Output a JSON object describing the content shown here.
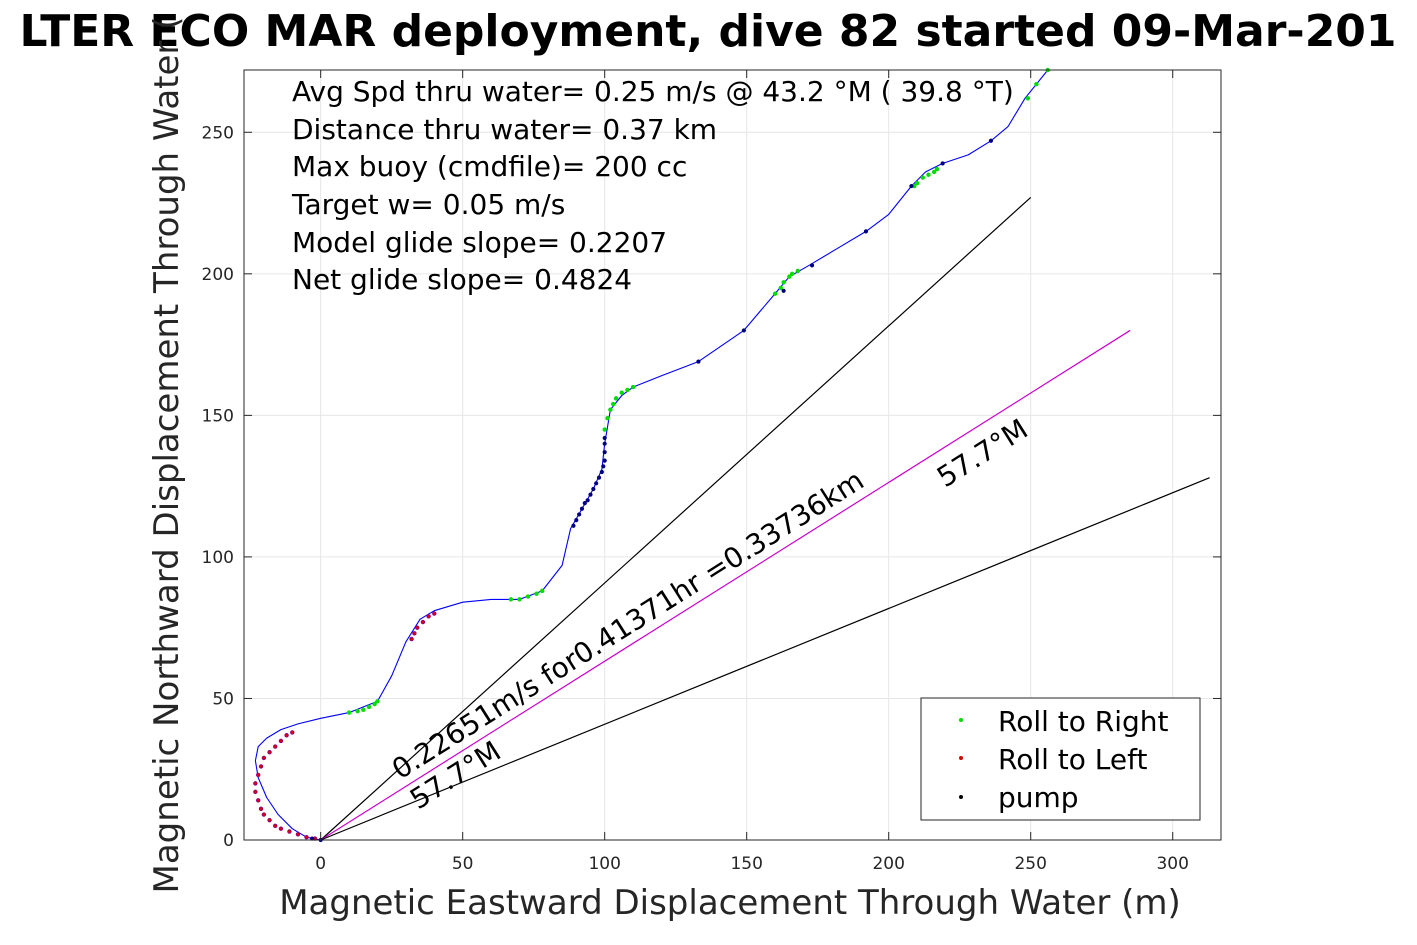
{
  "chart_data": {
    "type": "line",
    "title": "LTER ECO MAR deployment, dive 82 started 09-Mar-201",
    "xlabel": "Magnetic Eastward Displacement Through Water (m)",
    "ylabel": "Magnetic Northward Displacement Through Water (",
    "xlim": [
      -27,
      317
    ],
    "ylim": [
      0,
      272
    ],
    "xticks": [
      0,
      50,
      100,
      150,
      200,
      250,
      300
    ],
    "yticks": [
      0,
      50,
      100,
      150,
      200,
      250
    ],
    "grid": true,
    "legend_position": "bottom-right",
    "stats_text": [
      "Avg Spd thru water=  0.25 m/s @  43.2 °M ( 39.8 °T)",
      "Distance thru water=  0.37 km",
      "Max buoy (cmdfile)= 200 cc",
      "Target w= 0.05 m/s",
      "Model glide slope= 0.2207",
      "Net glide slope= 0.4824"
    ],
    "line_annotations": [
      {
        "text": "0.22651m/s for0.41371hr =0.33736km",
        "x": 28,
        "y": 20
      },
      {
        "text": "57.7°M",
        "x": 33,
        "y": 10
      },
      {
        "text": "57.7°M",
        "x": 220,
        "y": 124
      }
    ],
    "reference_lines": [
      {
        "name": "left-bound",
        "color": "#000000",
        "x": [
          0,
          250
        ],
        "y": [
          0,
          227
        ]
      },
      {
        "name": "heading",
        "color": "#cc00cc",
        "x": [
          0,
          285
        ],
        "y": [
          0,
          180
        ]
      },
      {
        "name": "right-bound",
        "color": "#000000",
        "x": [
          0,
          313
        ],
        "y": [
          0,
          128
        ]
      }
    ],
    "track": {
      "color": "#0000ff",
      "x": [
        0,
        -5,
        -10,
        -15,
        -19,
        -22,
        -23,
        -22,
        -19,
        -14,
        -8,
        0,
        10,
        20,
        25,
        30,
        35,
        40,
        50,
        60,
        70,
        78,
        85,
        88,
        92,
        96,
        99,
        100,
        102,
        106,
        110,
        120,
        133,
        149,
        160,
        165,
        172,
        182,
        192,
        200,
        208,
        213,
        219,
        228,
        236,
        242,
        248,
        256
      ],
      "y": [
        0,
        1,
        4,
        9,
        15,
        22,
        28,
        33,
        36,
        39,
        41,
        43,
        45,
        49,
        58,
        70,
        78,
        81,
        84,
        85,
        85,
        88,
        97,
        110,
        117,
        124,
        131,
        140,
        152,
        157,
        160,
        164,
        169,
        180,
        193,
        199,
        203,
        209,
        215,
        221,
        231,
        236,
        239,
        242,
        247,
        252,
        262,
        272
      ]
    },
    "markers": {
      "roll_right": {
        "color": "#00dd00",
        "x": [
          10,
          13,
          15,
          17,
          19,
          20,
          67,
          70,
          73,
          76,
          78,
          100,
          101,
          102,
          103,
          104,
          106,
          108,
          110,
          160,
          162,
          163,
          165,
          166,
          168,
          209,
          210,
          212,
          214,
          216,
          217,
          249,
          252,
          256
        ],
        "y": [
          45,
          45.5,
          46,
          47,
          48,
          49,
          85,
          85,
          86,
          87,
          88,
          145,
          149,
          152,
          154,
          156,
          158,
          159,
          160,
          193,
          195,
          197,
          199,
          200,
          201,
          231,
          232,
          234,
          235,
          236,
          237,
          262,
          267,
          272
        ]
      },
      "roll_left": {
        "color": "#dd0000",
        "x": [
          -10,
          -12,
          -14,
          -16,
          -18,
          -20,
          -21,
          -22,
          -23,
          -23,
          -22,
          -21,
          -20,
          -18,
          -16,
          -14,
          -11,
          -8,
          -5,
          -2,
          32,
          33,
          34,
          36,
          38,
          40
        ],
        "y": [
          38,
          37,
          35,
          33,
          31,
          29,
          26,
          23,
          20,
          17,
          14,
          11,
          9,
          7,
          5,
          4,
          3,
          2,
          1,
          0.5,
          71,
          73,
          75,
          77,
          79,
          80
        ],
        "edge_color": "#880088"
      },
      "pump": {
        "color": "#000080",
        "x": [
          -3,
          0,
          89,
          90,
          91,
          92,
          93,
          94,
          95,
          96,
          97,
          98,
          99,
          99.5,
          100,
          100,
          100,
          100,
          133,
          149,
          163,
          173,
          192,
          208,
          219,
          236
        ],
        "y": [
          0.5,
          0,
          111,
          113,
          115,
          117,
          119,
          120,
          122,
          124,
          126,
          128,
          130,
          132,
          134,
          137,
          140,
          142,
          169,
          180,
          194,
          203,
          215,
          231,
          239,
          247
        ]
      }
    },
    "legend": [
      {
        "label": "Roll to Right",
        "color": "#00dd00"
      },
      {
        "label": "Roll to Left",
        "color": "#dd0000"
      },
      {
        "label": "pump",
        "color": "#000000"
      }
    ]
  }
}
